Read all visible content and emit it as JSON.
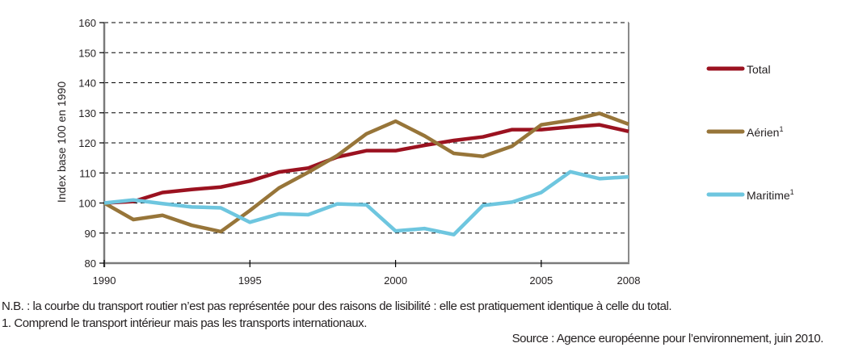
{
  "chart_data": {
    "type": "line",
    "title": "",
    "xlabel": "",
    "ylabel": "Index base 100 en 1990",
    "xlim": [
      1990,
      2008
    ],
    "ylim": [
      80,
      160
    ],
    "x_ticks": [
      1990,
      1995,
      2000,
      2005,
      2008
    ],
    "x_tick_labels": [
      "1990",
      "1995",
      "2000",
      "2005",
      "2008"
    ],
    "y_ticks": [
      80,
      90,
      100,
      110,
      120,
      130,
      140,
      150,
      160
    ],
    "y_tick_labels": [
      "80",
      "90",
      "100",
      "110",
      "120",
      "130",
      "140",
      "150",
      "160"
    ],
    "grid": "horizontal-dashed",
    "legend_position": "right",
    "x": [
      1990,
      1991,
      1992,
      1993,
      1994,
      1995,
      1996,
      1997,
      1998,
      1999,
      2000,
      2001,
      2002,
      2003,
      2004,
      2005,
      2006,
      2007,
      2008
    ],
    "series": [
      {
        "name": "Total",
        "superscript": "",
        "color": "#9b1220",
        "values": [
          100,
          100.5,
          103.5,
          104.5,
          105.3,
          107.3,
          110.3,
          111.6,
          115.3,
          117.4,
          117.4,
          119.2,
          120.8,
          122.0,
          124.4,
          124.4,
          125.3,
          126.0,
          123.8
        ]
      },
      {
        "name": "Aérien",
        "superscript": "1",
        "color": "#977539",
        "values": [
          100,
          94.5,
          95.9,
          92.6,
          90.5,
          97.5,
          105.0,
          110.2,
          115.8,
          123.0,
          127.2,
          122.3,
          116.5,
          115.5,
          118.9,
          126.0,
          127.5,
          129.8,
          126.2
        ]
      },
      {
        "name": "Maritime",
        "superscript": "1",
        "color": "#6ec6df",
        "values": [
          100,
          101.0,
          99.8,
          98.7,
          98.4,
          93.6,
          96.4,
          96.1,
          99.7,
          99.4,
          90.7,
          91.5,
          89.5,
          99.2,
          100.3,
          103.5,
          110.4,
          108.1,
          108.7
        ]
      }
    ]
  },
  "notes": {
    "nb": "N.B. : la courbe du transport routier n’est pas représentée pour des raisons de lisibilité : elle est pratiquement identique à celle du total.",
    "footnote": "1. Comprend le transport intérieur mais pas les transports internationaux.",
    "source": "Source : Agence européenne pour l’environnement, juin 2010."
  }
}
